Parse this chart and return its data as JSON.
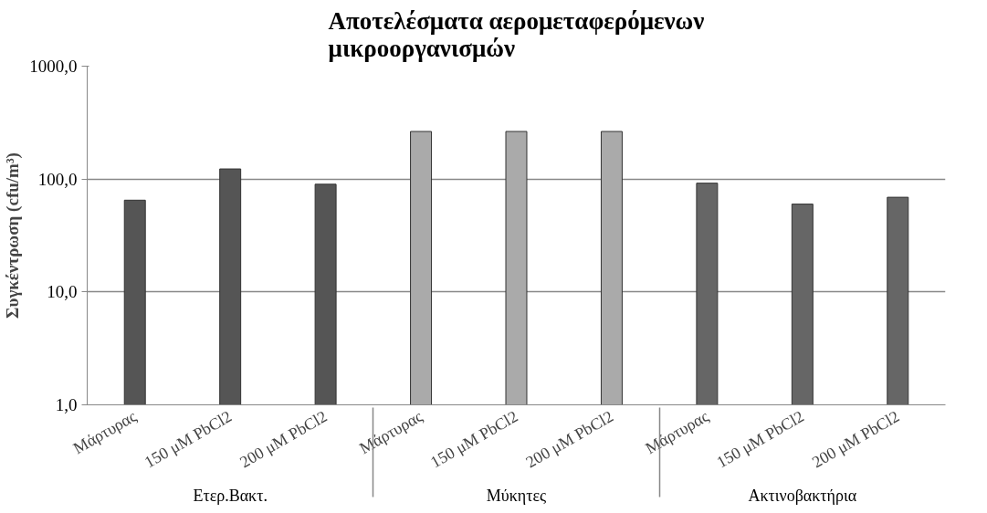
{
  "chart_data": {
    "type": "bar",
    "title": "Αποτελέσματα αερομεταφερόμενων\nμικροοργανισμών",
    "ylabel": "Συγκέντρωση (cfu/m³)",
    "categories": [
      "Μάρτυρας",
      "150 μM PbCl2",
      "200 μM PbCl2",
      "Μάρτυρας",
      "150 μM PbCl2",
      "200 μM PbCl2",
      "Μάρτυρας",
      "150 μM PbCl2",
      "200 μM PbCl2"
    ],
    "annotations": [
      "Ετερ.Βακτ.",
      "Μύκητες",
      "Ακτινοβακτήρια"
    ],
    "values": [
      65,
      123,
      90,
      264,
      264,
      264,
      92,
      60,
      69
    ],
    "colors": [
      "#555555",
      "#555555",
      "#555555",
      "#aaaaaa",
      "#aaaaaa",
      "#aaaaaa",
      "#666666",
      "#666666",
      "#666666"
    ],
    "log": true,
    "ylim": [
      1,
      1000
    ],
    "yticks": [
      {
        "value": 1,
        "label": "1,0"
      },
      {
        "value": 10,
        "label": "10,0"
      },
      {
        "value": 100,
        "label": "100,0"
      },
      {
        "value": 1000,
        "label": "1000,0"
      }
    ],
    "grid": "y"
  }
}
